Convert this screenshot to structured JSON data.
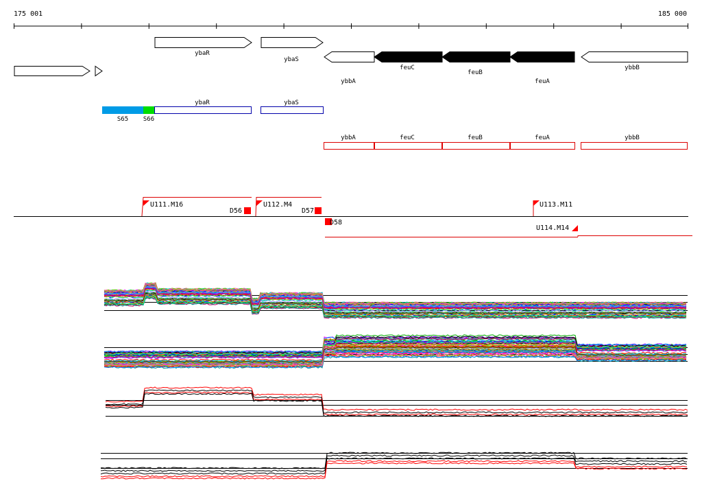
{
  "ruler": {
    "start_label": "175 001",
    "end_label": "185 000"
  },
  "genes": {
    "forward": [
      {
        "label": ""
      },
      {
        "label": ""
      },
      {
        "label": "ybaR"
      },
      {
        "label": "ybaS"
      }
    ],
    "reverse": [
      {
        "label": "ybbA",
        "highlighted": false
      },
      {
        "label": "feuC",
        "highlighted": true
      },
      {
        "label": "feuB",
        "highlighted": true
      },
      {
        "label": "feuA",
        "highlighted": true
      },
      {
        "label": "ybbB",
        "highlighted": false
      }
    ]
  },
  "forward_features": [
    {
      "label": "S65",
      "color": "#009be6"
    },
    {
      "label": "S66",
      "color": "#00dd00"
    },
    {
      "label": "ybaR",
      "color": "#0000aa"
    },
    {
      "label": "ybaS",
      "color": "#0000aa"
    }
  ],
  "reverse_features": [
    {
      "label": "ybbA"
    },
    {
      "label": "feuC"
    },
    {
      "label": "feuB"
    },
    {
      "label": "feuA"
    },
    {
      "label": "ybbB"
    }
  ],
  "segments": {
    "upstream": [
      {
        "label": "U111.M16"
      },
      {
        "label": "U112.M4"
      },
      {
        "label": "U113.M11"
      },
      {
        "label": "U114.M14"
      }
    ],
    "downstream": [
      {
        "label": "D56"
      },
      {
        "label": "D57"
      },
      {
        "label": "D58"
      }
    ]
  },
  "colors": {
    "reverse_feature_outline": "#dd0000",
    "segment_line": "#dd0000",
    "segment_marker": "#ff0000",
    "highlighted_gene_fill": "#000000",
    "axis": "#000000"
  },
  "profile_panels": [
    {
      "name": "forward-strand-profiles",
      "style": "multicolor"
    },
    {
      "name": "reverse-strand-profiles",
      "style": "multicolor"
    },
    {
      "name": "forward-strand-summary",
      "style": "red-black"
    },
    {
      "name": "reverse-strand-summary",
      "style": "red-black"
    }
  ]
}
